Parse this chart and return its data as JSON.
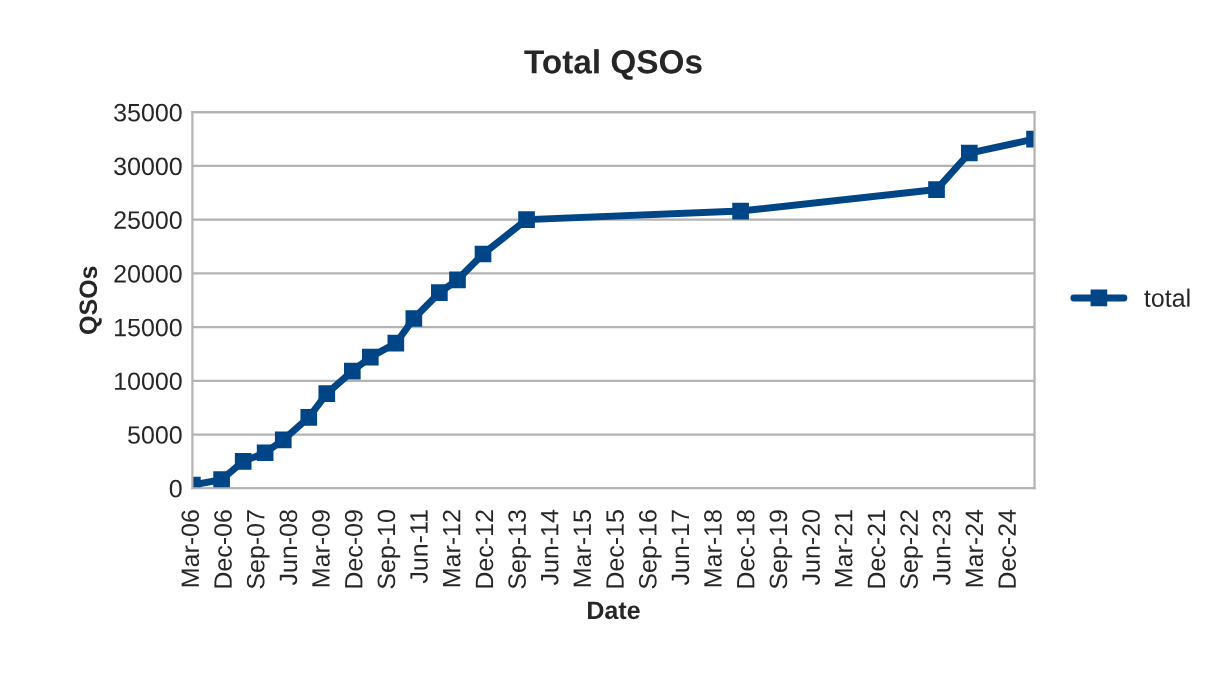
{
  "chart_data": {
    "type": "line",
    "title": "Total QSOs",
    "xlabel": "Date",
    "ylabel": "QSOs",
    "x": [
      "2006-03",
      "2006-11",
      "2007-05",
      "2007-11",
      "2008-04",
      "2008-11",
      "2009-04",
      "2009-11",
      "2010-04",
      "2010-11",
      "2011-04",
      "2011-11",
      "2012-04",
      "2012-11",
      "2013-11",
      "2018-10",
      "2023-04",
      "2024-01",
      "2025-07"
    ],
    "series": [
      {
        "name": "total",
        "color": "#004586",
        "values": [
          300,
          800,
          2500,
          3300,
          4500,
          6600,
          8800,
          10900,
          12200,
          13500,
          15800,
          18200,
          19400,
          21800,
          25000,
          25800,
          27800,
          31200,
          32500
        ]
      }
    ],
    "xlim": [
      "2006-03",
      "2025-07"
    ],
    "xticks": [
      {
        "value": "2006-03",
        "label": "Mar-06"
      },
      {
        "value": "2006-12",
        "label": "Dec-06"
      },
      {
        "value": "2007-09",
        "label": "Sep-07"
      },
      {
        "value": "2008-06",
        "label": "Jun-08"
      },
      {
        "value": "2009-03",
        "label": "Mar-09"
      },
      {
        "value": "2009-12",
        "label": "Dec-09"
      },
      {
        "value": "2010-09",
        "label": "Sep-10"
      },
      {
        "value": "2011-06",
        "label": "Jun-11"
      },
      {
        "value": "2012-03",
        "label": "Mar-12"
      },
      {
        "value": "2012-12",
        "label": "Dec-12"
      },
      {
        "value": "2013-09",
        "label": "Sep-13"
      },
      {
        "value": "2014-06",
        "label": "Jun-14"
      },
      {
        "value": "2015-03",
        "label": "Mar-15"
      },
      {
        "value": "2015-12",
        "label": "Dec-15"
      },
      {
        "value": "2016-09",
        "label": "Sep-16"
      },
      {
        "value": "2017-06",
        "label": "Jun-17"
      },
      {
        "value": "2018-03",
        "label": "Mar-18"
      },
      {
        "value": "2018-12",
        "label": "Dec-18"
      },
      {
        "value": "2019-09",
        "label": "Sep-19"
      },
      {
        "value": "2020-06",
        "label": "Jun-20"
      },
      {
        "value": "2021-03",
        "label": "Mar-21"
      },
      {
        "value": "2021-12",
        "label": "Dec-21"
      },
      {
        "value": "2022-09",
        "label": "Sep-22"
      },
      {
        "value": "2023-06",
        "label": "Jun-23"
      },
      {
        "value": "2024-03",
        "label": "Mar-24"
      },
      {
        "value": "2024-12",
        "label": "Dec-24"
      }
    ],
    "ylim": [
      0,
      35000
    ],
    "yticks": [
      0,
      5000,
      10000,
      15000,
      20000,
      25000,
      30000,
      35000
    ],
    "grid": "y",
    "legend": "right",
    "marker": "square",
    "line_style": "solid"
  }
}
